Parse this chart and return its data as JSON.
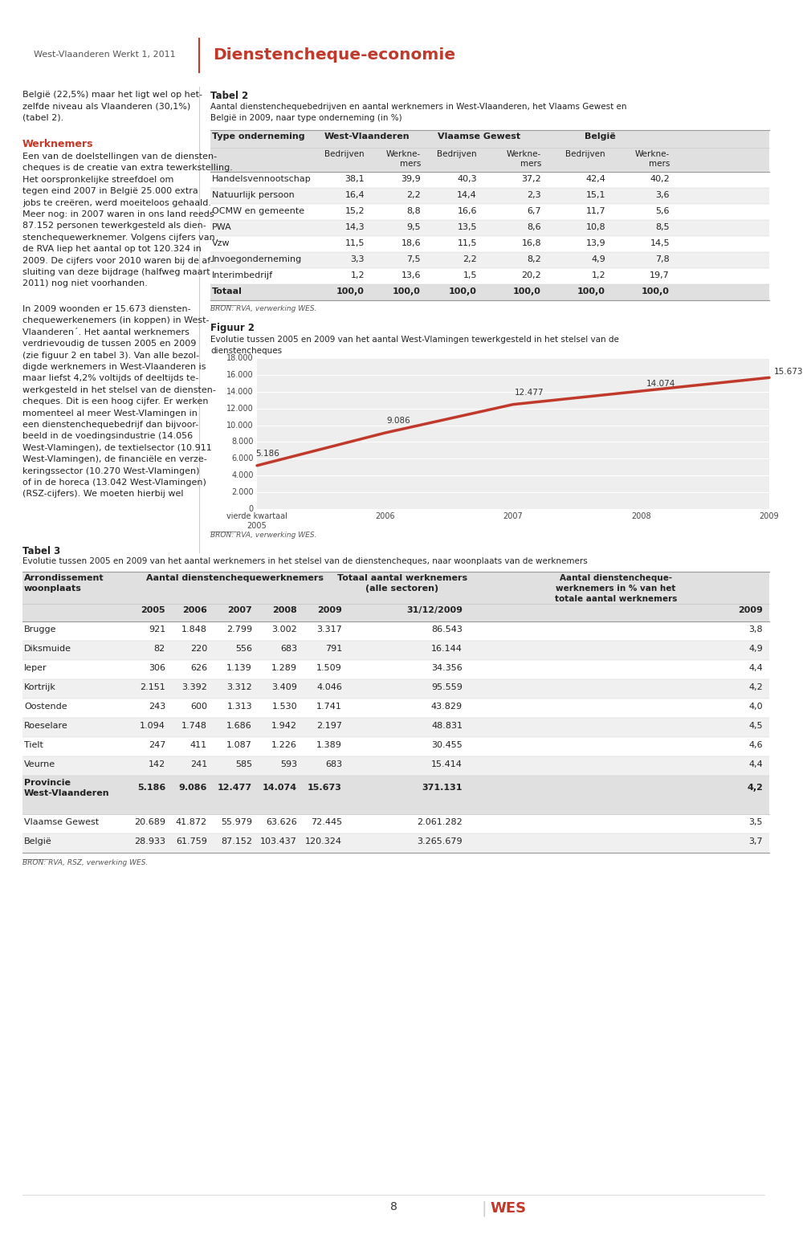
{
  "page_bg": "#ffffff",
  "header_line_color": "#c0392b",
  "header_left": "West-Vlaanderen Werkt 1, 2011",
  "header_right": "Dienstencheque-economie",
  "header_right_color": "#c0392b",
  "tabel2_title": "Tabel 2",
  "tabel2_subtitle": "Aantal dienstenchequebedrijven en aantal werknemers in West-Vlaanderen, het Vlaams Gewest en\nBelgië in 2009, naar type onderneming (in %)",
  "tabel2_rows": [
    [
      "Handelsvennootschap",
      "38,1",
      "39,9",
      "40,3",
      "37,2",
      "42,4",
      "40,2"
    ],
    [
      "Natuurlijk persoon",
      "16,4",
      "2,2",
      "14,4",
      "2,3",
      "15,1",
      "3,6"
    ],
    [
      "OCMW en gemeente",
      "15,2",
      "8,8",
      "16,6",
      "6,7",
      "11,7",
      "5,6"
    ],
    [
      "PWA",
      "14,3",
      "9,5",
      "13,5",
      "8,6",
      "10,8",
      "8,5"
    ],
    [
      "Vzw",
      "11,5",
      "18,6",
      "11,5",
      "16,8",
      "13,9",
      "14,5"
    ],
    [
      "Invoegonderneming",
      "3,3",
      "7,5",
      "2,2",
      "8,2",
      "4,9",
      "7,8"
    ],
    [
      "Interimbedrijf",
      "1,2",
      "13,6",
      "1,5",
      "20,2",
      "1,2",
      "19,7"
    ],
    [
      "Totaal",
      "100,0",
      "100,0",
      "100,0",
      "100,0",
      "100,0",
      "100,0"
    ]
  ],
  "bron1": "BRON: RVA, verwerking WES.",
  "figuur2_title": "Figuur 2",
  "figuur2_subtitle": "Evolutie tussen 2005 en 2009 van het aantal West-Vlamingen tewerkgesteld in het stelsel van de\ndienstencheques",
  "chart_x": [
    "vierde kwartaal\n2005",
    "2006",
    "2007",
    "2008",
    "2009"
  ],
  "chart_y": [
    5186,
    9086,
    12477,
    14074,
    15673
  ],
  "chart_labels": [
    "5.186",
    "9.086",
    "12.477",
    "14.074",
    "15.673"
  ],
  "chart_ylim": [
    0,
    18000
  ],
  "chart_yticks": [
    0,
    2000,
    4000,
    6000,
    8000,
    10000,
    12000,
    14000,
    16000,
    18000
  ],
  "chart_ytick_labels": [
    "0",
    "2.000",
    "4.000",
    "6.000",
    "8.000",
    "10.000",
    "12.000",
    "14.000",
    "16.000",
    "18.000"
  ],
  "chart_line_color": "#c0392b",
  "bron2": "BRON: RVA, verwerking WES.",
  "tabel3_title": "Tabel 3",
  "tabel3_subtitle": "Evolutie tussen 2005 en 2009 van het aantal werknemers in het stelsel van de dienstencheques, naar woonplaats van de werknemers",
  "tabel3_rows": [
    [
      "Brugge",
      "921",
      "1.848",
      "2.799",
      "3.002",
      "3.317",
      "86.543",
      "3,8"
    ],
    [
      "Diksmuide",
      "82",
      "220",
      "556",
      "683",
      "791",
      "16.144",
      "4,9"
    ],
    [
      "Ieper",
      "306",
      "626",
      "1.139",
      "1.289",
      "1.509",
      "34.356",
      "4,4"
    ],
    [
      "Kortrijk",
      "2.151",
      "3.392",
      "3.312",
      "3.409",
      "4.046",
      "95.559",
      "4,2"
    ],
    [
      "Oostende",
      "243",
      "600",
      "1.313",
      "1.530",
      "1.741",
      "43.829",
      "4,0"
    ],
    [
      "Roeselare",
      "1.094",
      "1.748",
      "1.686",
      "1.942",
      "2.197",
      "48.831",
      "4,5"
    ],
    [
      "Tielt",
      "247",
      "411",
      "1.087",
      "1.226",
      "1.389",
      "30.455",
      "4,6"
    ],
    [
      "Veurne",
      "142",
      "241",
      "585",
      "593",
      "683",
      "15.414",
      "4,4"
    ]
  ],
  "tabel3_province_row": [
    "Provincie\nWest-Vlaanderen",
    "5.186",
    "9.086",
    "12.477",
    "14.074",
    "15.673",
    "371.131",
    "4,2"
  ],
  "tabel3_vlaams_row": [
    "Vlaamse Gewest",
    "20.689",
    "41.872",
    "55.979",
    "63.626",
    "72.445",
    "2.061.282",
    "3,5"
  ],
  "tabel3_belgie_row": [
    "België",
    "28.933",
    "61.759",
    "87.152",
    "103.437",
    "120.324",
    "3.265.679",
    "3,7"
  ],
  "bron3": "BRON: RVA, RSZ, verwerking WES.",
  "page_number": "8",
  "table_header_bg": "#e0e0e0",
  "table_alt_bg": "#f0f0f0",
  "left_col_p1": "België (22,5%) maar het ligt wel op het-\nzelfde niveau als Vlaanderen (30,1%)\n(tabel 2).",
  "left_col_werknemers": "Werknemers",
  "left_col_p2": "Een van de doelstellingen van de diensten-\ncheques is de creatie van extra tewerkstelling.\nHet oorspronkelijke streefdoel om\ntegen eind 2007 in België 25.000 extra\njobs te creëren, werd moeiteloos gehaald.\nMeer nog: in 2007 waren in ons land reeds\n87.152 personen tewerkgesteld als dien-\nstenchequewerknemer. Volgens cijfers van\nde RVA liep het aantal op tot 120.324 in\n2009. De cijfers voor 2010 waren bij de af-\nsluiting van deze bijdrage (halfweg maart\n2011) nog niet voorhanden.",
  "left_col_p3": "In 2009 woonden er 15.673 diensten-\nchequewerkenemers (in koppen) in West-\nVlaanderen´. Het aantal werknemers\nverdrievoudig de tussen 2005 en 2009\n(zie figuur 2 en tabel 3). Van alle bezol-\ndigde werknemers in West-Vlaanderen is\nmaar liefst 4,2% voltijds of deeltijds te-\nwerkgesteld in het stelsel van de diensten-\ncheques. Dit is een hoog cijfer. Er werken\nmomenteel al meer West-Vlamingen in\neen dienstenchequebedrijf dan bijvoor-\nbeeld in de voedingsindustrie (14.056\nWest-Vlamingen), de textielsector (10.911\nWest-Vlamingen), de financiële en verze-\nkeringssector (10.270 West-Vlamingen)\nof in de horeca (13.042 West-Vlamingen)\n(RSZ-cijfers). We moeten hierbij wel"
}
